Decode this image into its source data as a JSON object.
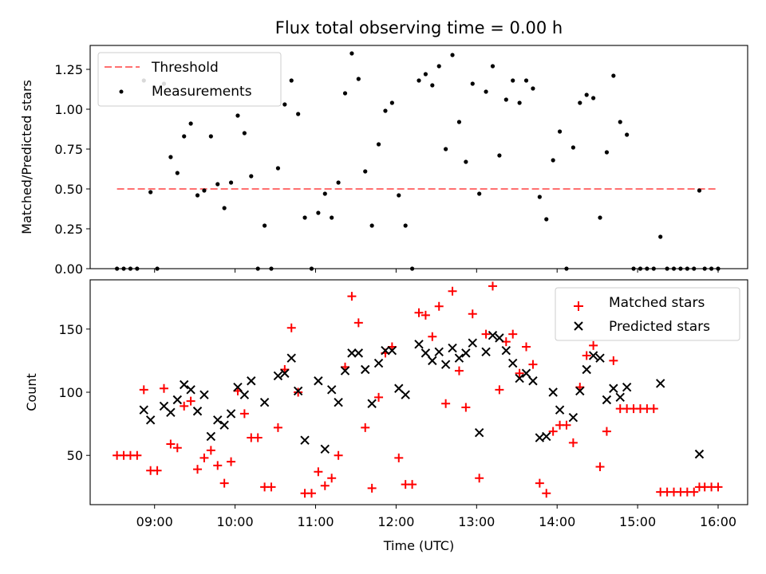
{
  "chart_data": [
    {
      "type": "scatter",
      "title": "Flux total observing time = 0.00 h",
      "xlabel": "",
      "ylabel": "Matched/Predicted stars",
      "xlim": [
        "08:12",
        "16:22"
      ],
      "ylim": [
        0,
        1.4
      ],
      "yticks": [
        0.0,
        0.25,
        0.5,
        0.75,
        1.0,
        1.25
      ],
      "ytick_labels": [
        "0.00",
        "0.25",
        "0.50",
        "0.75",
        "1.00",
        "1.25"
      ],
      "xticks": [
        "09:00",
        "10:00",
        "11:00",
        "12:00",
        "13:00",
        "14:00",
        "15:00",
        "16:00"
      ],
      "legend_position": "top-left",
      "series": [
        {
          "name": "Threshold",
          "kind": "dashed-line",
          "color": "#ff7070",
          "points": [
            [
              "08:32",
              0.5
            ],
            [
              "16:00",
              0.5
            ]
          ]
        },
        {
          "name": "Measurements",
          "kind": "dot",
          "color": "#000000",
          "points": [
            [
              "08:32",
              0.0
            ],
            [
              "08:37",
              0.0
            ],
            [
              "08:42",
              0.0
            ],
            [
              "08:47",
              0.0
            ],
            [
              "08:52",
              1.18
            ],
            [
              "08:57",
              0.48
            ],
            [
              "09:02",
              0.0
            ],
            [
              "09:07",
              1.16
            ],
            [
              "09:12",
              0.7
            ],
            [
              "09:17",
              0.6
            ],
            [
              "09:22",
              0.83
            ],
            [
              "09:27",
              0.91
            ],
            [
              "09:32",
              0.46
            ],
            [
              "09:37",
              0.49
            ],
            [
              "09:42",
              0.83
            ],
            [
              "09:47",
              0.53
            ],
            [
              "09:52",
              0.38
            ],
            [
              "09:57",
              0.54
            ],
            [
              "10:02",
              0.96
            ],
            [
              "10:07",
              0.85
            ],
            [
              "10:12",
              0.58
            ],
            [
              "10:17",
              0.0
            ],
            [
              "10:22",
              0.27
            ],
            [
              "10:27",
              0.0
            ],
            [
              "10:32",
              0.63
            ],
            [
              "10:37",
              1.03
            ],
            [
              "10:42",
              1.18
            ],
            [
              "10:47",
              0.97
            ],
            [
              "10:52",
              0.32
            ],
            [
              "10:57",
              0.0
            ],
            [
              "11:02",
              0.35
            ],
            [
              "11:07",
              0.47
            ],
            [
              "11:12",
              0.32
            ],
            [
              "11:17",
              0.54
            ],
            [
              "11:22",
              1.1
            ],
            [
              "11:27",
              1.35
            ],
            [
              "11:32",
              1.19
            ],
            [
              "11:37",
              0.61
            ],
            [
              "11:42",
              0.27
            ],
            [
              "11:47",
              0.78
            ],
            [
              "11:52",
              0.99
            ],
            [
              "11:57",
              1.04
            ],
            [
              "12:02",
              0.46
            ],
            [
              "12:07",
              0.27
            ],
            [
              "12:12",
              0.0
            ],
            [
              "12:17",
              1.18
            ],
            [
              "12:22",
              1.22
            ],
            [
              "12:27",
              1.15
            ],
            [
              "12:32",
              1.27
            ],
            [
              "12:37",
              0.75
            ],
            [
              "12:42",
              1.34
            ],
            [
              "12:47",
              0.92
            ],
            [
              "12:52",
              0.67
            ],
            [
              "12:57",
              1.16
            ],
            [
              "13:02",
              0.47
            ],
            [
              "13:07",
              1.11
            ],
            [
              "13:12",
              1.27
            ],
            [
              "13:17",
              0.71
            ],
            [
              "13:22",
              1.06
            ],
            [
              "13:27",
              1.18
            ],
            [
              "13:32",
              1.04
            ],
            [
              "13:37",
              1.18
            ],
            [
              "13:42",
              1.13
            ],
            [
              "13:47",
              0.45
            ],
            [
              "13:52",
              0.31
            ],
            [
              "13:57",
              0.68
            ],
            [
              "14:02",
              0.86
            ],
            [
              "14:07",
              0.0
            ],
            [
              "14:12",
              0.76
            ],
            [
              "14:17",
              1.04
            ],
            [
              "14:22",
              1.09
            ],
            [
              "14:27",
              1.07
            ],
            [
              "14:32",
              0.32
            ],
            [
              "14:37",
              0.73
            ],
            [
              "14:42",
              1.21
            ],
            [
              "14:47",
              0.92
            ],
            [
              "14:52",
              0.84
            ],
            [
              "14:57",
              0.0
            ],
            [
              "15:02",
              0.0
            ],
            [
              "15:07",
              0.0
            ],
            [
              "15:12",
              0.0
            ],
            [
              "15:17",
              0.2
            ],
            [
              "15:22",
              0.0
            ],
            [
              "15:27",
              0.0
            ],
            [
              "15:32",
              0.0
            ],
            [
              "15:37",
              0.0
            ],
            [
              "15:42",
              0.0
            ],
            [
              "15:46",
              0.49
            ],
            [
              "15:50",
              0.0
            ],
            [
              "15:55",
              0.0
            ],
            [
              "16:00",
              0.0
            ]
          ]
        }
      ]
    },
    {
      "type": "scatter",
      "title": "",
      "xlabel": "Time (UTC)",
      "ylabel": "Count",
      "xlim": [
        "08:12",
        "16:22"
      ],
      "ylim": [
        11,
        189
      ],
      "yticks": [
        50,
        100,
        150
      ],
      "ytick_labels": [
        "50",
        "100",
        "150"
      ],
      "xticks": [
        "09:00",
        "10:00",
        "11:00",
        "12:00",
        "13:00",
        "14:00",
        "15:00",
        "16:00"
      ],
      "legend_position": "top-right",
      "series": [
        {
          "name": "Matched stars",
          "kind": "plus",
          "color": "#ff0000",
          "points": [
            [
              "08:32",
              50
            ],
            [
              "08:37",
              50
            ],
            [
              "08:42",
              50
            ],
            [
              "08:47",
              50
            ],
            [
              "08:52",
              102
            ],
            [
              "08:57",
              38
            ],
            [
              "09:02",
              38
            ],
            [
              "09:07",
              103
            ],
            [
              "09:12",
              59
            ],
            [
              "09:17",
              56
            ],
            [
              "09:22",
              89
            ],
            [
              "09:27",
              93
            ],
            [
              "09:32",
              39
            ],
            [
              "09:37",
              48
            ],
            [
              "09:42",
              54
            ],
            [
              "09:47",
              42
            ],
            [
              "09:52",
              28
            ],
            [
              "09:57",
              45
            ],
            [
              "10:02",
              101
            ],
            [
              "10:07",
              83
            ],
            [
              "10:12",
              64
            ],
            [
              "10:17",
              64
            ],
            [
              "10:22",
              25
            ],
            [
              "10:27",
              25
            ],
            [
              "10:32",
              72
            ],
            [
              "10:37",
              118
            ],
            [
              "10:42",
              151
            ],
            [
              "10:47",
              100
            ],
            [
              "10:52",
              20
            ],
            [
              "10:57",
              20
            ],
            [
              "11:02",
              37
            ],
            [
              "11:07",
              26
            ],
            [
              "11:12",
              32
            ],
            [
              "11:17",
              50
            ],
            [
              "11:22",
              120
            ],
            [
              "11:27",
              176
            ],
            [
              "11:32",
              155
            ],
            [
              "11:37",
              72
            ],
            [
              "11:42",
              24
            ],
            [
              "11:47",
              96
            ],
            [
              "11:52",
              131
            ],
            [
              "11:57",
              136
            ],
            [
              "12:02",
              48
            ],
            [
              "12:07",
              27
            ],
            [
              "12:12",
              27
            ],
            [
              "12:17",
              163
            ],
            [
              "12:22",
              161
            ],
            [
              "12:27",
              144
            ],
            [
              "12:32",
              168
            ],
            [
              "12:37",
              91
            ],
            [
              "12:42",
              180
            ],
            [
              "12:47",
              117
            ],
            [
              "12:52",
              88
            ],
            [
              "12:57",
              162
            ],
            [
              "13:02",
              32
            ],
            [
              "13:07",
              146
            ],
            [
              "13:12",
              184
            ],
            [
              "13:17",
              102
            ],
            [
              "13:22",
              140
            ],
            [
              "13:27",
              146
            ],
            [
              "13:32",
              115
            ],
            [
              "13:37",
              136
            ],
            [
              "13:42",
              122
            ],
            [
              "13:47",
              28
            ],
            [
              "13:52",
              20
            ],
            [
              "13:57",
              69
            ],
            [
              "14:02",
              74
            ],
            [
              "14:07",
              74
            ],
            [
              "14:12",
              60
            ],
            [
              "14:17",
              104
            ],
            [
              "14:22",
              129
            ],
            [
              "14:27",
              137
            ],
            [
              "14:32",
              41
            ],
            [
              "14:37",
              69
            ],
            [
              "14:42",
              125
            ],
            [
              "14:47",
              87
            ],
            [
              "14:52",
              87
            ],
            [
              "14:57",
              87
            ],
            [
              "15:02",
              87
            ],
            [
              "15:07",
              87
            ],
            [
              "15:12",
              87
            ],
            [
              "15:17",
              21
            ],
            [
              "15:22",
              21
            ],
            [
              "15:27",
              21
            ],
            [
              "15:32",
              21
            ],
            [
              "15:37",
              21
            ],
            [
              "15:42",
              21
            ],
            [
              "15:46",
              25
            ],
            [
              "15:50",
              25
            ],
            [
              "15:55",
              25
            ],
            [
              "16:00",
              25
            ]
          ]
        },
        {
          "name": "Predicted stars",
          "kind": "x",
          "color": "#000000",
          "points": [
            [
              "08:52",
              86
            ],
            [
              "08:57",
              78
            ],
            [
              "09:07",
              89
            ],
            [
              "09:12",
              84
            ],
            [
              "09:17",
              94
            ],
            [
              "09:22",
              106
            ],
            [
              "09:27",
              102
            ],
            [
              "09:32",
              85
            ],
            [
              "09:37",
              98
            ],
            [
              "09:42",
              65
            ],
            [
              "09:47",
              78
            ],
            [
              "09:52",
              74
            ],
            [
              "09:57",
              83
            ],
            [
              "10:02",
              104
            ],
            [
              "10:07",
              98
            ],
            [
              "10:12",
              109
            ],
            [
              "10:22",
              92
            ],
            [
              "10:32",
              113
            ],
            [
              "10:37",
              115
            ],
            [
              "10:42",
              127
            ],
            [
              "10:47",
              101
            ],
            [
              "10:52",
              62
            ],
            [
              "11:02",
              109
            ],
            [
              "11:07",
              55
            ],
            [
              "11:12",
              102
            ],
            [
              "11:17",
              92
            ],
            [
              "11:22",
              117
            ],
            [
              "11:27",
              131
            ],
            [
              "11:32",
              131
            ],
            [
              "11:37",
              118
            ],
            [
              "11:42",
              91
            ],
            [
              "11:47",
              123
            ],
            [
              "11:52",
              133
            ],
            [
              "11:57",
              133
            ],
            [
              "12:02",
              103
            ],
            [
              "12:07",
              98
            ],
            [
              "12:17",
              138
            ],
            [
              "12:22",
              131
            ],
            [
              "12:27",
              125
            ],
            [
              "12:32",
              132
            ],
            [
              "12:37",
              122
            ],
            [
              "12:42",
              135
            ],
            [
              "12:47",
              127
            ],
            [
              "12:52",
              131
            ],
            [
              "12:57",
              139
            ],
            [
              "13:02",
              68
            ],
            [
              "13:07",
              132
            ],
            [
              "13:12",
              145
            ],
            [
              "13:17",
              143
            ],
            [
              "13:22",
              133
            ],
            [
              "13:27",
              123
            ],
            [
              "13:32",
              111
            ],
            [
              "13:37",
              115
            ],
            [
              "13:42",
              109
            ],
            [
              "13:47",
              64
            ],
            [
              "13:52",
              65
            ],
            [
              "13:57",
              100
            ],
            [
              "14:02",
              86
            ],
            [
              "14:12",
              80
            ],
            [
              "14:17",
              101
            ],
            [
              "14:22",
              118
            ],
            [
              "14:27",
              129
            ],
            [
              "14:32",
              127
            ],
            [
              "14:37",
              94
            ],
            [
              "14:42",
              103
            ],
            [
              "14:47",
              96
            ],
            [
              "14:52",
              104
            ],
            [
              "15:17",
              107
            ],
            [
              "15:46",
              51
            ]
          ]
        }
      ]
    }
  ]
}
